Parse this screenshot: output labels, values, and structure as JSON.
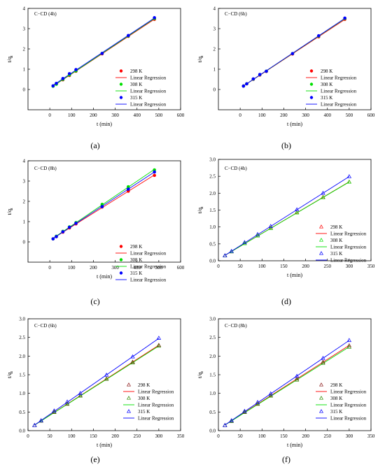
{
  "chart_data": [
    {
      "type": "scatter",
      "panel": "(a)",
      "annotation": "C−CD (4h)",
      "xlabel": "t (min)",
      "ylabel": "t/qt",
      "xlim": [
        -100,
        600
      ],
      "ylim": [
        -1,
        4
      ],
      "xticks": [
        0,
        100,
        200,
        300,
        400,
        500,
        600
      ],
      "yticks": [
        0,
        1,
        2,
        3,
        4
      ],
      "marker": "filled-circle",
      "series": [
        {
          "name": "298 K",
          "color": "#ff0000",
          "x": [
            15,
            30,
            60,
            90,
            120,
            240,
            360,
            480
          ],
          "y": [
            0.17,
            0.27,
            0.48,
            0.69,
            0.9,
            1.76,
            2.62,
            3.46
          ]
        },
        {
          "name": "308 K",
          "color": "#00e000",
          "x": [
            15,
            30,
            60,
            90,
            120,
            240,
            360,
            480
          ],
          "y": [
            0.16,
            0.26,
            0.5,
            0.72,
            0.92,
            1.78,
            2.64,
            3.5
          ]
        },
        {
          "name": "315 K",
          "color": "#0000ff",
          "x": [
            15,
            30,
            60,
            90,
            120,
            240,
            360,
            480
          ],
          "y": [
            0.18,
            0.3,
            0.54,
            0.78,
            0.98,
            1.78,
            2.66,
            3.54
          ]
        }
      ],
      "legend": [
        {
          "label": "298 K",
          "kind": "marker",
          "color": "#ff0000"
        },
        {
          "label": "Linear Regression",
          "kind": "line",
          "color": "#ff0000"
        },
        {
          "label": "308 K",
          "kind": "marker",
          "color": "#00e000"
        },
        {
          "label": "Linear Regression",
          "kind": "line",
          "color": "#00e000"
        },
        {
          "label": "315 K",
          "kind": "marker",
          "color": "#0000ff"
        },
        {
          "label": "Linear  Regression",
          "kind": "line",
          "color": "#0000ff"
        }
      ]
    },
    {
      "type": "scatter",
      "panel": "(b)",
      "annotation": "C−CD (6h)",
      "xlabel": "t (min)",
      "ylabel": "t/qt",
      "xlim": [
        -100,
        600
      ],
      "ylim": [
        -1,
        4
      ],
      "xticks": [
        0,
        100,
        200,
        300,
        400,
        500,
        600
      ],
      "yticks": [
        0,
        1,
        2,
        3,
        4
      ],
      "marker": "filled-circle",
      "series": [
        {
          "name": "298 K",
          "color": "#ff0000",
          "x": [
            15,
            30,
            60,
            90,
            120,
            240,
            360,
            480
          ],
          "y": [
            0.17,
            0.28,
            0.5,
            0.71,
            0.89,
            1.75,
            2.6,
            3.46
          ]
        },
        {
          "name": "308 K",
          "color": "#00e000",
          "x": [
            15,
            30,
            60,
            90,
            120,
            240,
            360,
            480
          ],
          "y": [
            0.17,
            0.28,
            0.51,
            0.73,
            0.9,
            1.77,
            2.63,
            3.5
          ]
        },
        {
          "name": "315 K",
          "color": "#0000ff",
          "x": [
            15,
            30,
            60,
            90,
            120,
            240,
            360,
            480
          ],
          "y": [
            0.17,
            0.28,
            0.52,
            0.74,
            0.9,
            1.77,
            2.65,
            3.52
          ]
        }
      ],
      "legend": [
        {
          "label": "298 K",
          "kind": "marker",
          "color": "#ff0000"
        },
        {
          "label": "Linear Regression",
          "kind": "line",
          "color": "#ff0000"
        },
        {
          "label": "308 K",
          "kind": "marker",
          "color": "#00e000"
        },
        {
          "label": "Linear Regression",
          "kind": "line",
          "color": "#00e000"
        },
        {
          "label": "315 K",
          "kind": "marker",
          "color": "#0000ff"
        },
        {
          "label": "Linear  Regression",
          "kind": "line",
          "color": "#0000ff"
        }
      ]
    },
    {
      "type": "scatter",
      "panel": "(c)",
      "annotation": "C−CD (8h)",
      "xlabel": "t (min)",
      "ylabel": "t/qt",
      "xlim": [
        -100,
        600
      ],
      "ylim": [
        -1,
        4
      ],
      "xticks": [
        0,
        100,
        200,
        300,
        400,
        500,
        600
      ],
      "yticks": [
        0,
        1,
        2,
        3,
        4
      ],
      "marker": "filled-circle",
      "series": [
        {
          "name": "298 K",
          "color": "#ff0000",
          "x": [
            15,
            30,
            60,
            90,
            120,
            240,
            360,
            480
          ],
          "y": [
            0.15,
            0.26,
            0.48,
            0.69,
            0.89,
            1.72,
            2.5,
            3.28
          ]
        },
        {
          "name": "308 K",
          "color": "#00e000",
          "x": [
            15,
            30,
            60,
            90,
            120,
            240,
            360,
            480
          ],
          "y": [
            0.15,
            0.28,
            0.52,
            0.74,
            0.95,
            1.85,
            2.72,
            3.55
          ]
        },
        {
          "name": "315 K",
          "color": "#0000ff",
          "x": [
            15,
            30,
            60,
            90,
            120,
            240,
            360,
            480
          ],
          "y": [
            0.15,
            0.26,
            0.5,
            0.72,
            0.92,
            1.74,
            2.6,
            3.45
          ]
        }
      ],
      "legend": [
        {
          "label": "298 K",
          "kind": "marker",
          "color": "#ff0000"
        },
        {
          "label": "Linear Regression",
          "kind": "line",
          "color": "#ff0000"
        },
        {
          "label": "308 K",
          "kind": "marker",
          "color": "#00e000"
        },
        {
          "label": "Linear Regression",
          "kind": "line",
          "color": "#00e000"
        },
        {
          "label": "315 K",
          "kind": "marker",
          "color": "#0000ff"
        },
        {
          "label": "Linear  Regression",
          "kind": "line",
          "color": "#0000ff"
        }
      ]
    },
    {
      "type": "scatter",
      "panel": "(d)",
      "annotation": "C−CD (4h)",
      "xlabel": "t (min)",
      "ylabel": "t/qt",
      "xlim": [
        0,
        350
      ],
      "ylim": [
        0,
        3
      ],
      "xticks": [
        0,
        50,
        100,
        150,
        200,
        250,
        300,
        350
      ],
      "yticks": [
        0.0,
        0.5,
        1.0,
        1.5,
        2.0,
        2.5,
        3.0
      ],
      "ytick_decimals": 1,
      "marker": "open-triangle",
      "series": [
        {
          "name": "298 K",
          "color": "#ff0000",
          "x": [
            15,
            30,
            60,
            90,
            120,
            180,
            240,
            300
          ],
          "y": [
            0.15,
            0.27,
            0.51,
            0.74,
            0.97,
            1.43,
            1.88,
            2.33
          ]
        },
        {
          "name": "308 K",
          "color": "#00e000",
          "x": [
            15,
            30,
            60,
            90,
            120,
            180,
            240,
            300
          ],
          "y": [
            0.15,
            0.27,
            0.51,
            0.74,
            0.96,
            1.42,
            1.87,
            2.33
          ]
        },
        {
          "name": "315 K",
          "color": "#0000ff",
          "x": [
            15,
            30,
            60,
            90,
            120,
            180,
            240,
            300
          ],
          "y": [
            0.15,
            0.28,
            0.54,
            0.78,
            1.02,
            1.51,
            2.0,
            2.49
          ]
        }
      ],
      "legend": [
        {
          "label": "298 K",
          "kind": "marker",
          "color": "#ff0000"
        },
        {
          "label": "Linear Regression",
          "kind": "line",
          "color": "#ff0000"
        },
        {
          "label": "308 K",
          "kind": "marker",
          "color": "#00e000"
        },
        {
          "label": "Linear Regression",
          "kind": "line",
          "color": "#00e000"
        },
        {
          "label": "315 K",
          "kind": "marker",
          "color": "#0000ff"
        },
        {
          "label": "Linear  Regression",
          "kind": "line",
          "color": "#0000ff"
        }
      ]
    },
    {
      "type": "scatter",
      "panel": "(e)",
      "annotation": "C−CD (6h)",
      "xlabel": "t (min)",
      "ylabel": "t/qt",
      "xlim": [
        0,
        350
      ],
      "ylim": [
        0,
        3
      ],
      "xticks": [
        0,
        50,
        100,
        150,
        200,
        250,
        300,
        350
      ],
      "yticks": [
        0.0,
        0.5,
        1.0,
        1.5,
        2.0,
        2.5,
        3.0
      ],
      "ytick_decimals": 1,
      "marker": "open-triangle",
      "series": [
        {
          "name": "298 K",
          "color": "#8b1a1a",
          "x": [
            15,
            30,
            60,
            90,
            120,
            180,
            240,
            300
          ],
          "y": [
            0.14,
            0.26,
            0.5,
            0.72,
            0.94,
            1.39,
            1.84,
            2.29
          ]
        },
        {
          "name": "308 K",
          "color": "#2e8b00",
          "x": [
            15,
            30,
            60,
            90,
            120,
            180,
            240,
            300
          ],
          "y": [
            0.14,
            0.26,
            0.49,
            0.71,
            0.93,
            1.38,
            1.82,
            2.27
          ]
        },
        {
          "name": "315 K",
          "color": "#0000ff",
          "x": [
            15,
            30,
            60,
            90,
            120,
            180,
            240,
            300
          ],
          "y": [
            0.14,
            0.27,
            0.53,
            0.77,
            1.0,
            1.49,
            1.98,
            2.48
          ]
        }
      ],
      "legend": [
        {
          "label": "298 K",
          "kind": "marker",
          "color": "#8b1a1a"
        },
        {
          "label": "Linear Regression",
          "kind": "line",
          "color": "#ff0000"
        },
        {
          "label": "308 K",
          "kind": "marker",
          "color": "#2e8b00"
        },
        {
          "label": "Linear Regression",
          "kind": "line",
          "color": "#00e000"
        },
        {
          "label": "315 K",
          "kind": "marker",
          "color": "#0000ff"
        },
        {
          "label": "Linear  Regression",
          "kind": "line",
          "color": "#0000ff"
        }
      ]
    },
    {
      "type": "scatter",
      "panel": "(f)",
      "annotation": "C−CD (8h)",
      "xlabel": "t (min)",
      "ylabel": "t/qt",
      "xlim": [
        0,
        350
      ],
      "ylim": [
        0,
        3
      ],
      "xticks": [
        0,
        50,
        100,
        150,
        200,
        250,
        300,
        350
      ],
      "yticks": [
        0.0,
        0.5,
        1.0,
        1.5,
        2.0,
        2.5,
        3.0
      ],
      "ytick_decimals": 1,
      "marker": "open-triangle",
      "series": [
        {
          "name": "298 K",
          "color": "#8b1a1a",
          "x": [
            15,
            30,
            60,
            90,
            120,
            180,
            240,
            300
          ],
          "y": [
            0.14,
            0.26,
            0.5,
            0.72,
            0.94,
            1.39,
            1.84,
            2.28
          ]
        },
        {
          "name": "308 K",
          "color": "#2e8b00",
          "x": [
            15,
            30,
            60,
            90,
            120,
            180,
            240,
            300
          ],
          "y": [
            0.14,
            0.25,
            0.49,
            0.71,
            0.93,
            1.36,
            1.81,
            2.24
          ]
        },
        {
          "name": "315 K",
          "color": "#0000ff",
          "x": [
            15,
            30,
            60,
            90,
            120,
            180,
            240,
            300
          ],
          "y": [
            0.14,
            0.27,
            0.52,
            0.76,
            0.99,
            1.46,
            1.94,
            2.42
          ]
        }
      ],
      "legend": [
        {
          "label": "298 K",
          "kind": "marker",
          "color": "#8b1a1a"
        },
        {
          "label": "Linear Regression",
          "kind": "line",
          "color": "#ff0000"
        },
        {
          "label": "308 K",
          "kind": "marker",
          "color": "#2e8b00"
        },
        {
          "label": "Linear Regression",
          "kind": "line",
          "color": "#00e000"
        },
        {
          "label": "315 K",
          "kind": "marker",
          "color": "#0000ff"
        },
        {
          "label": "Linear  Regression",
          "kind": "line",
          "color": "#0000ff"
        }
      ]
    }
  ]
}
